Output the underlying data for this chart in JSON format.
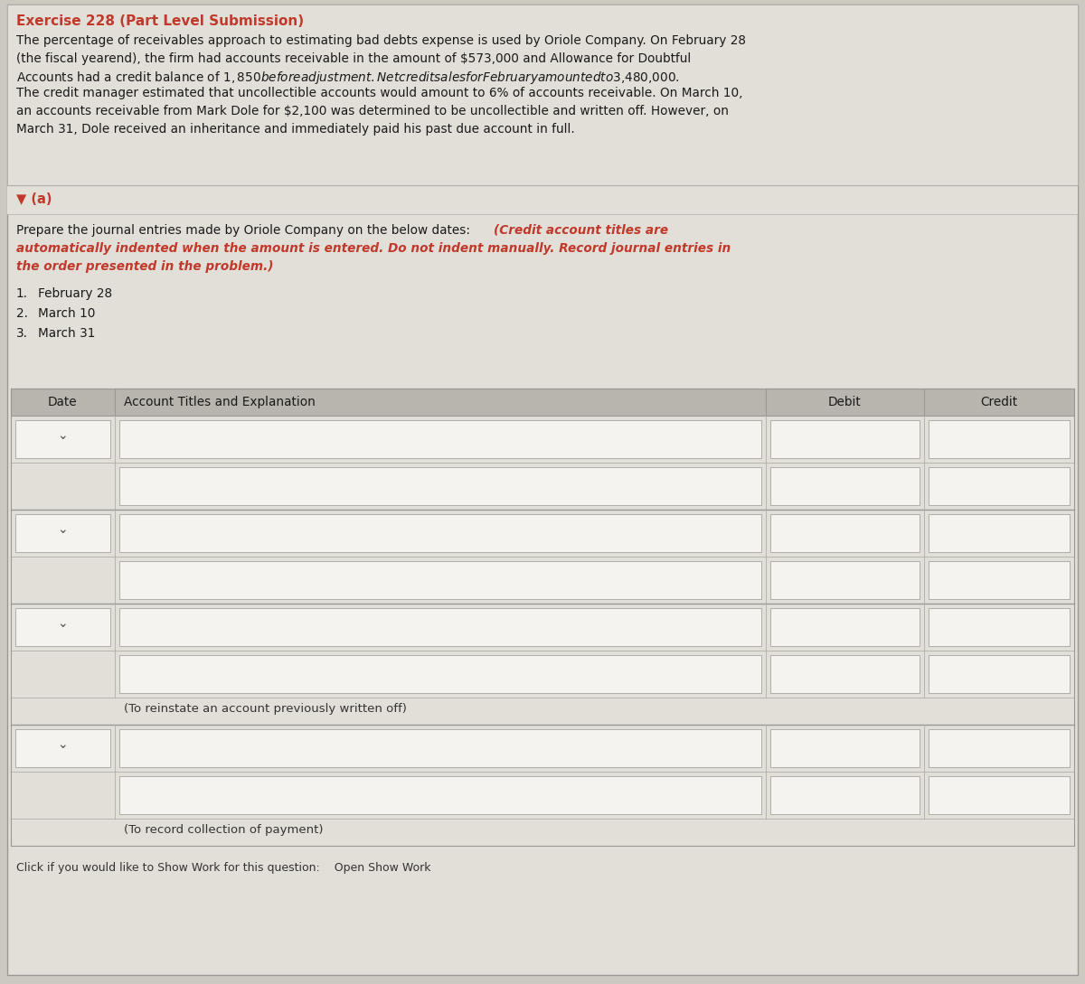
{
  "title": "Exercise 228 (Part Level Submission)",
  "title_color": "#c0392b",
  "bg_color": "#ccc9c0",
  "panel_bg": "#e2dfd8",
  "header_bg": "#b8b5ae",
  "box_bg": "#f5f3f0",
  "box_border": "#b0aeaa",
  "body_text_lines": [
    "The percentage of receivables approach to estimating bad debts expense is used by Oriole Company. On February 28",
    "(the fiscal yearend), the firm had accounts receivable in the amount of $573,000 and Allowance for Doubtful",
    "Accounts had a credit balance of $1,850 before adjustment. Net credit sales for February amounted to $3,480,000.",
    "The credit manager estimated that uncollectible accounts would amount to 6% of accounts receivable. On March 10,",
    "an accounts receivable from Mark Dole for $2,100 was determined to be uncollectible and written off. However, on",
    "March 31, Dole received an inheritance and immediately paid his past due account in full."
  ],
  "section_a_label": "▼ (a)",
  "section_a_color": "#c0392b",
  "instruction_normal": "Prepare the journal entries made by Oriole Company on the below dates: ",
  "instruction_italic_line1": "(Credit account titles are",
  "instruction_italic_line2": "automatically indented when the amount is entered. Do not indent manually. Record journal entries in",
  "instruction_italic_line3": "the order presented in the problem.)",
  "instruction_italic_color": "#c0392b",
  "numbered_items": [
    "1.",
    "February 28",
    "2.",
    "March 10",
    "3.",
    "March 31"
  ],
  "table_headers": [
    "Date",
    "Account Titles and Explanation",
    "Debit",
    "Credit"
  ],
  "note1": "(To reinstate an account previously written off)",
  "note2": "(To record collection of payment)",
  "footer": "Click if you would like to Show Work for this question:    Open Show Work",
  "text_color": "#1a1a1a"
}
